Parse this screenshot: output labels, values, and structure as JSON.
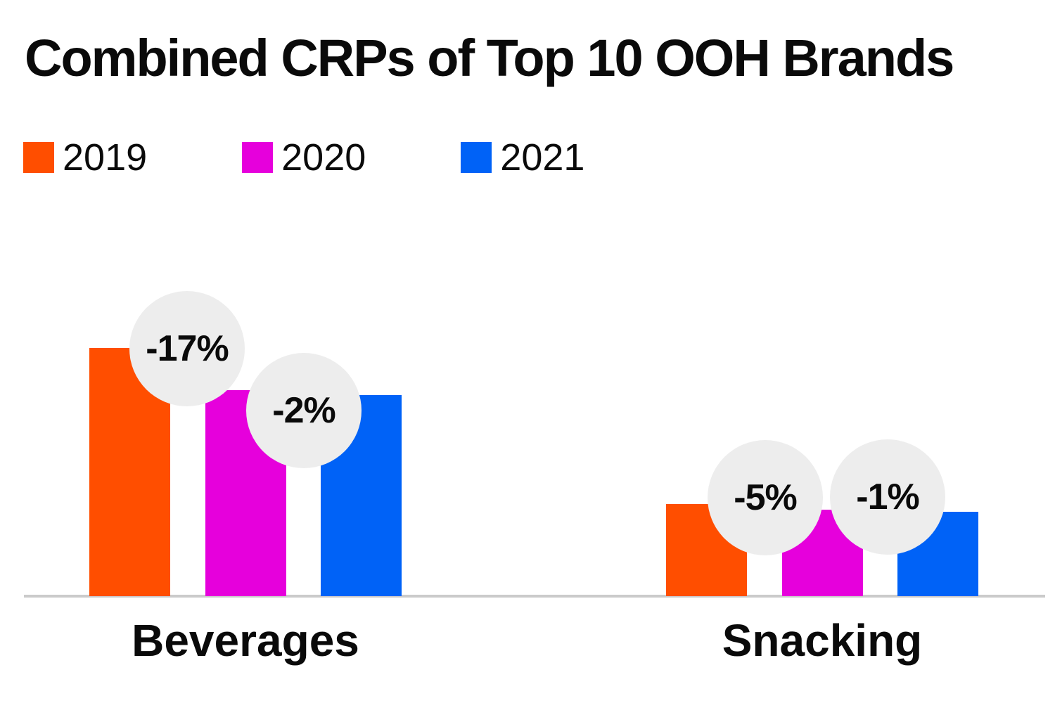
{
  "chart_data": {
    "type": "bar",
    "title": "Combined CRPs of Top 10 OOH Brands",
    "categories": [
      "Beverages",
      "Snacking"
    ],
    "series": [
      {
        "name": "2019",
        "color": "#FF4E00",
        "values": [
          100,
          37.1
        ]
      },
      {
        "name": "2020",
        "color": "#E600DC",
        "values": [
          83,
          34.8
        ]
      },
      {
        "name": "2021",
        "color": "#0062F7",
        "values": [
          81,
          34
        ]
      }
    ],
    "units": "relative CRP index (Beverages 2019 = 100); values estimated from bar heights, no value axis shown",
    "annotations": [
      {
        "category": "Beverages",
        "series": "2020",
        "label": "-17%"
      },
      {
        "category": "Beverages",
        "series": "2021",
        "label": "-2%"
      },
      {
        "category": "Snacking",
        "series": "2020",
        "label": "-5%"
      },
      {
        "category": "Snacking",
        "series": "2021",
        "label": "-1%"
      }
    ],
    "legend_position": "top-left",
    "grid": false,
    "y_axis_visible": false,
    "colors": {
      "background": "#FFFFFF",
      "text": "#0A0A0A",
      "baseline": "#CBCBCB",
      "annotation_badge": "#EDEDED"
    }
  }
}
